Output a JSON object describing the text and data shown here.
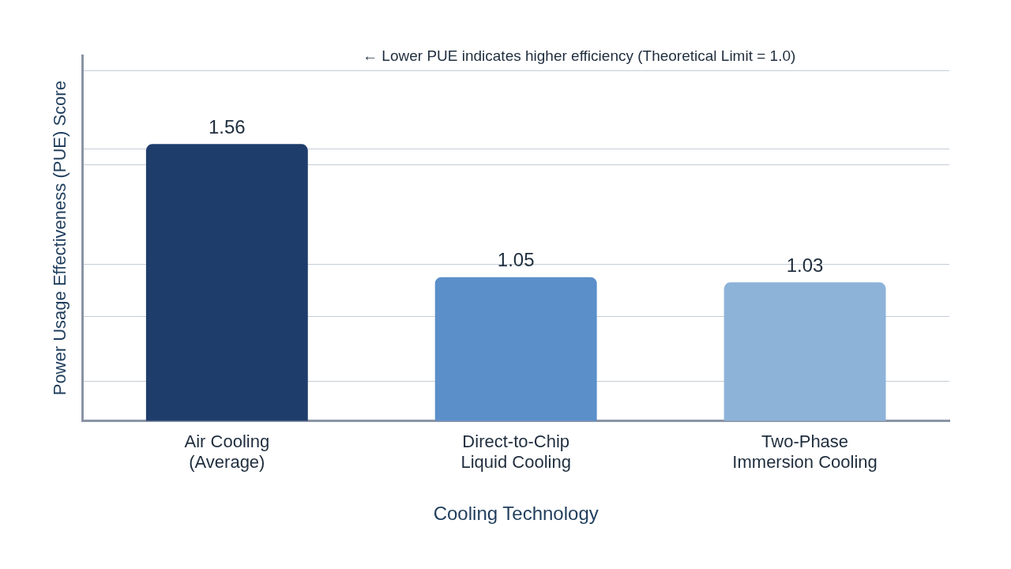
{
  "chart_data": {
    "type": "bar",
    "xlabel": "Cooling Technology",
    "ylabel": "Power Usage Effectiveness (PUE) Score",
    "categories": [
      "Air Cooling (Average)",
      "Direct-to-Chip Liquid Cooling",
      "Two-Phase Immersion Cooling"
    ],
    "values": [
      1.56,
      1.05,
      1.03
    ],
    "colors": [
      "#1f3d6b",
      "#5a8fca",
      "#8db3d9"
    ],
    "data_labels": true,
    "ylim": [
      0.5,
      1.9
    ],
    "yticks": [
      {
        "value": 0.65,
        "label": null
      },
      {
        "value": 0.9,
        "label": null
      },
      {
        "value": 1.1,
        "label": null
      },
      {
        "value": 1.48,
        "label": null
      },
      {
        "value": 1.54,
        "label": null
      },
      {
        "value": 1.84,
        "label": null
      }
    ],
    "grid": "y",
    "annotations": [
      "← Lower PUE indicates higher efficiency (Theoretical Limit = 1.0)"
    ]
  }
}
